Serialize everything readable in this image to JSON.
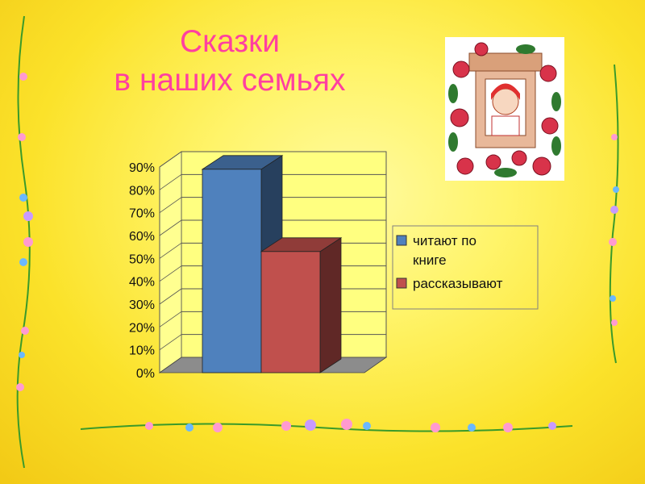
{
  "slide": {
    "title_line1": "Сказки",
    "title_line2": "в наших семьях"
  },
  "chart_data": {
    "type": "bar",
    "style": "3d-column",
    "categories": [
      ""
    ],
    "series": [
      {
        "name": "читают по книге",
        "legend_line1": "читают по",
        "legend_line2": "книге",
        "values": [
          89
        ],
        "color": "#4f81bd"
      },
      {
        "name": "рассказывают",
        "values": [
          53
        ],
        "color": "#c0504d"
      }
    ],
    "y_ticks": [
      "0%",
      "10%",
      "20%",
      "30%",
      "40%",
      "50%",
      "60%",
      "70%",
      "80%",
      "90%"
    ],
    "ylim": [
      0,
      90
    ],
    "grid": true,
    "legend_position": "right"
  },
  "colors": {
    "title": "#ff3fa0",
    "background": "#fbe22a"
  }
}
